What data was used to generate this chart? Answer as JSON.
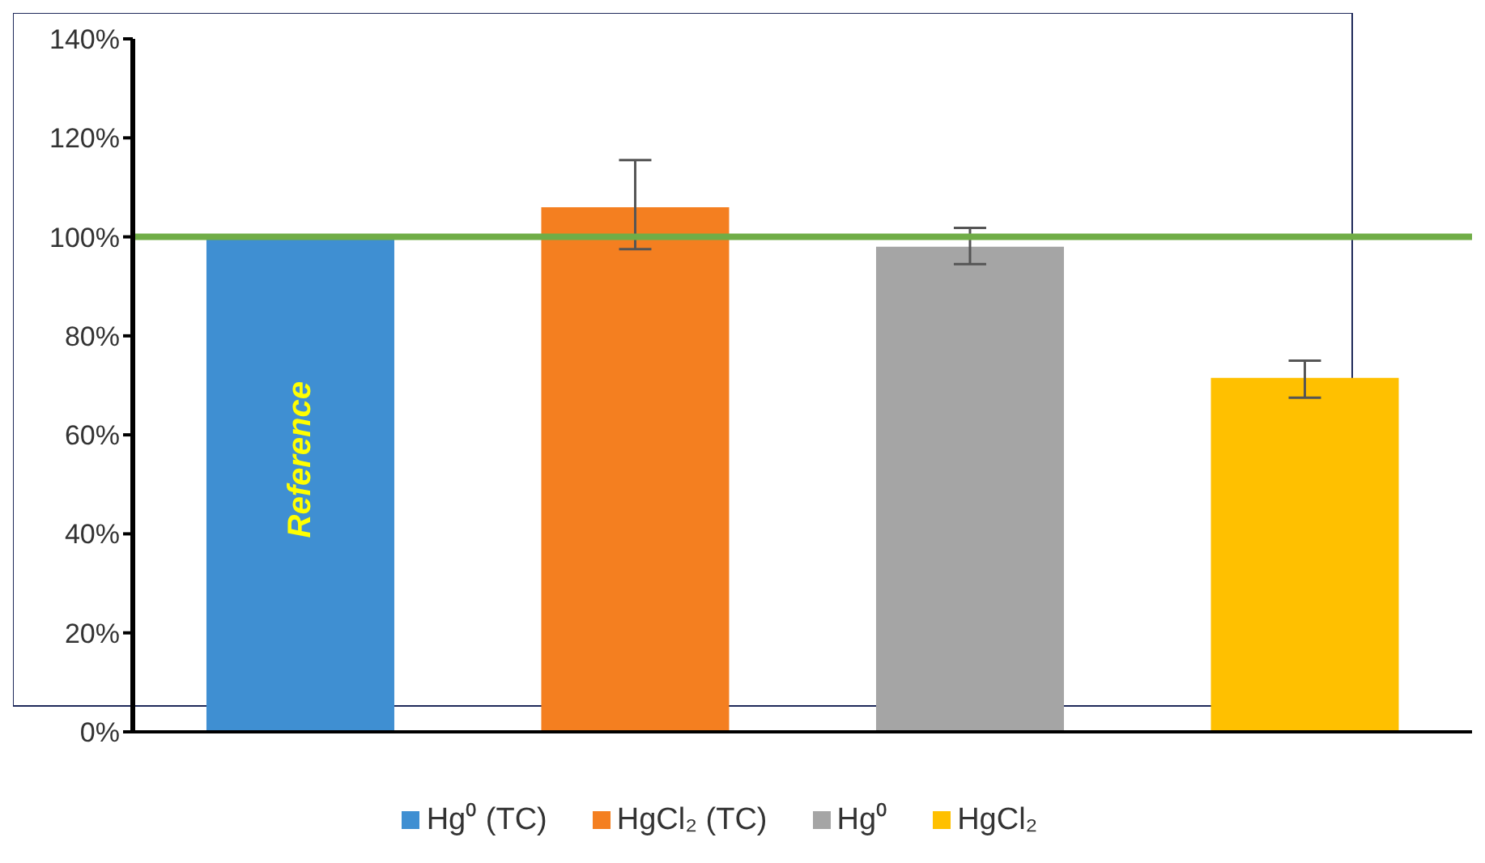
{
  "chart_data": {
    "type": "bar",
    "categories": [
      null,
      null,
      null,
      null
    ],
    "series": [
      {
        "name": "Hg⁰ (TC)",
        "color": "#3f8fd2",
        "values": [
          100,
          null,
          null,
          null
        ]
      },
      {
        "name": "HgCl₂ (TC)",
        "color": "#f47f20",
        "values": [
          null,
          106,
          null,
          null
        ],
        "errors": [
          null,
          [
            97.5,
            115.5
          ],
          null,
          null
        ]
      },
      {
        "name": "Hg⁰",
        "color": "#a5a5a5",
        "values": [
          null,
          null,
          98,
          null
        ],
        "errors": [
          null,
          null,
          [
            94.5,
            101.8
          ],
          null
        ]
      },
      {
        "name": "HgCl₂",
        "color": "#ffc000",
        "values": [
          null,
          null,
          null,
          71.5
        ],
        "errors": [
          null,
          null,
          null,
          [
            67.5,
            75
          ]
        ]
      }
    ],
    "ylim": [
      0,
      140
    ],
    "yticks": [
      {
        "value": 0,
        "label": "0%"
      },
      {
        "value": 20,
        "label": "20%"
      },
      {
        "value": 40,
        "label": "40%"
      },
      {
        "value": 60,
        "label": "60%"
      },
      {
        "value": 80,
        "label": "80%"
      },
      {
        "value": 100,
        "label": "100%"
      },
      {
        "value": 120,
        "label": "120%"
      },
      {
        "value": 140,
        "label": "140%"
      }
    ],
    "ref_lines": [
      {
        "axis": "y",
        "value": 100,
        "color": "#70ad47"
      }
    ],
    "annotations": [
      "Reference"
    ],
    "legend": "bottom"
  }
}
